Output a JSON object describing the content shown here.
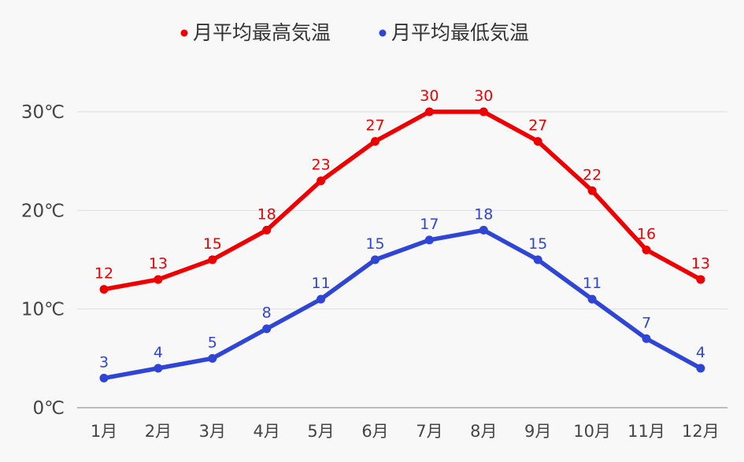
{
  "chart_data": {
    "type": "line",
    "title": "",
    "xlabel": "",
    "ylabel": "",
    "categories": [
      "1月",
      "2月",
      "3月",
      "4月",
      "5月",
      "6月",
      "7月",
      "8月",
      "9月",
      "10月",
      "11月",
      "12月"
    ],
    "ylim": [
      0,
      30
    ],
    "yticks": [
      0,
      10,
      20,
      30
    ],
    "y_unit": "℃",
    "grid": true,
    "legend_position": "top-center",
    "series": [
      {
        "name": "月平均最高気温",
        "color": "#ee0000",
        "values": [
          12,
          13,
          15,
          18,
          23,
          27,
          30,
          30,
          27,
          22,
          16,
          13
        ]
      },
      {
        "name": "月平均最低気温",
        "color": "#2e45d6",
        "values": [
          3,
          4,
          5,
          8,
          11,
          15,
          17,
          18,
          15,
          11,
          7,
          4
        ]
      }
    ]
  }
}
